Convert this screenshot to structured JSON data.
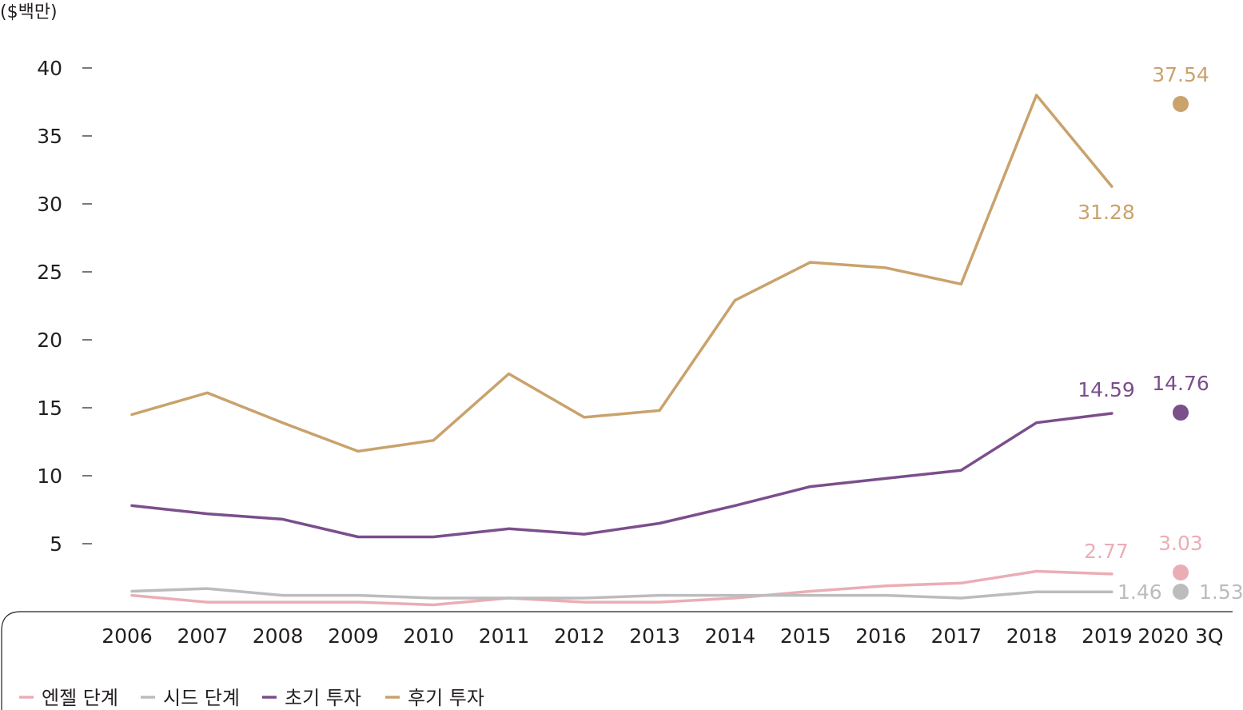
{
  "chart_data": {
    "type": "line",
    "unit_label": "($백만)",
    "categories": [
      "2006",
      "2007",
      "2008",
      "2009",
      "2010",
      "2011",
      "2012",
      "2013",
      "2014",
      "2015",
      "2016",
      "2017",
      "2018",
      "2019",
      "2020 3Q"
    ],
    "yticks": [
      "5",
      "10",
      "15",
      "20",
      "25",
      "30",
      "35",
      "40"
    ],
    "ylim": [
      0,
      40
    ],
    "grid": false,
    "legend_position": "bottom-left",
    "series": [
      {
        "name": "엔젤 단계",
        "color": "#ebadb5",
        "values": [
          1.2,
          0.7,
          0.7,
          0.7,
          0.5,
          1.0,
          0.7,
          0.7,
          1.0,
          1.5,
          1.9,
          2.1,
          2.97,
          2.77,
          null
        ],
        "point_2020_3Q": 3.03,
        "label_2019": "2.77",
        "label_2020": "3.03"
      },
      {
        "name": "시드 단계",
        "color": "#bcbcbc",
        "values": [
          1.5,
          1.7,
          1.2,
          1.2,
          1.0,
          1.0,
          1.0,
          1.2,
          1.2,
          1.2,
          1.2,
          1.0,
          1.46,
          1.46,
          null
        ],
        "point_2020_3Q": 1.53,
        "label_2019": "1.46",
        "label_2020": "1.53"
      },
      {
        "name": "초기 투자",
        "color": "#7b4e8c",
        "values": [
          7.8,
          7.2,
          6.8,
          5.5,
          5.5,
          6.1,
          5.7,
          6.5,
          7.8,
          9.2,
          9.8,
          10.4,
          13.9,
          14.59,
          null
        ],
        "point_2020_3Q": 14.76,
        "label_2019": "14.59",
        "label_2020": "14.76"
      },
      {
        "name": "후기 투자",
        "color": "#c9a26c",
        "values": [
          14.5,
          16.1,
          13.9,
          11.8,
          12.6,
          17.5,
          14.3,
          14.8,
          22.9,
          25.7,
          25.3,
          24.1,
          38.0,
          31.28,
          null
        ],
        "point_2020_3Q": 37.54,
        "label_2019": "31.28",
        "label_2020": "37.54"
      }
    ]
  }
}
